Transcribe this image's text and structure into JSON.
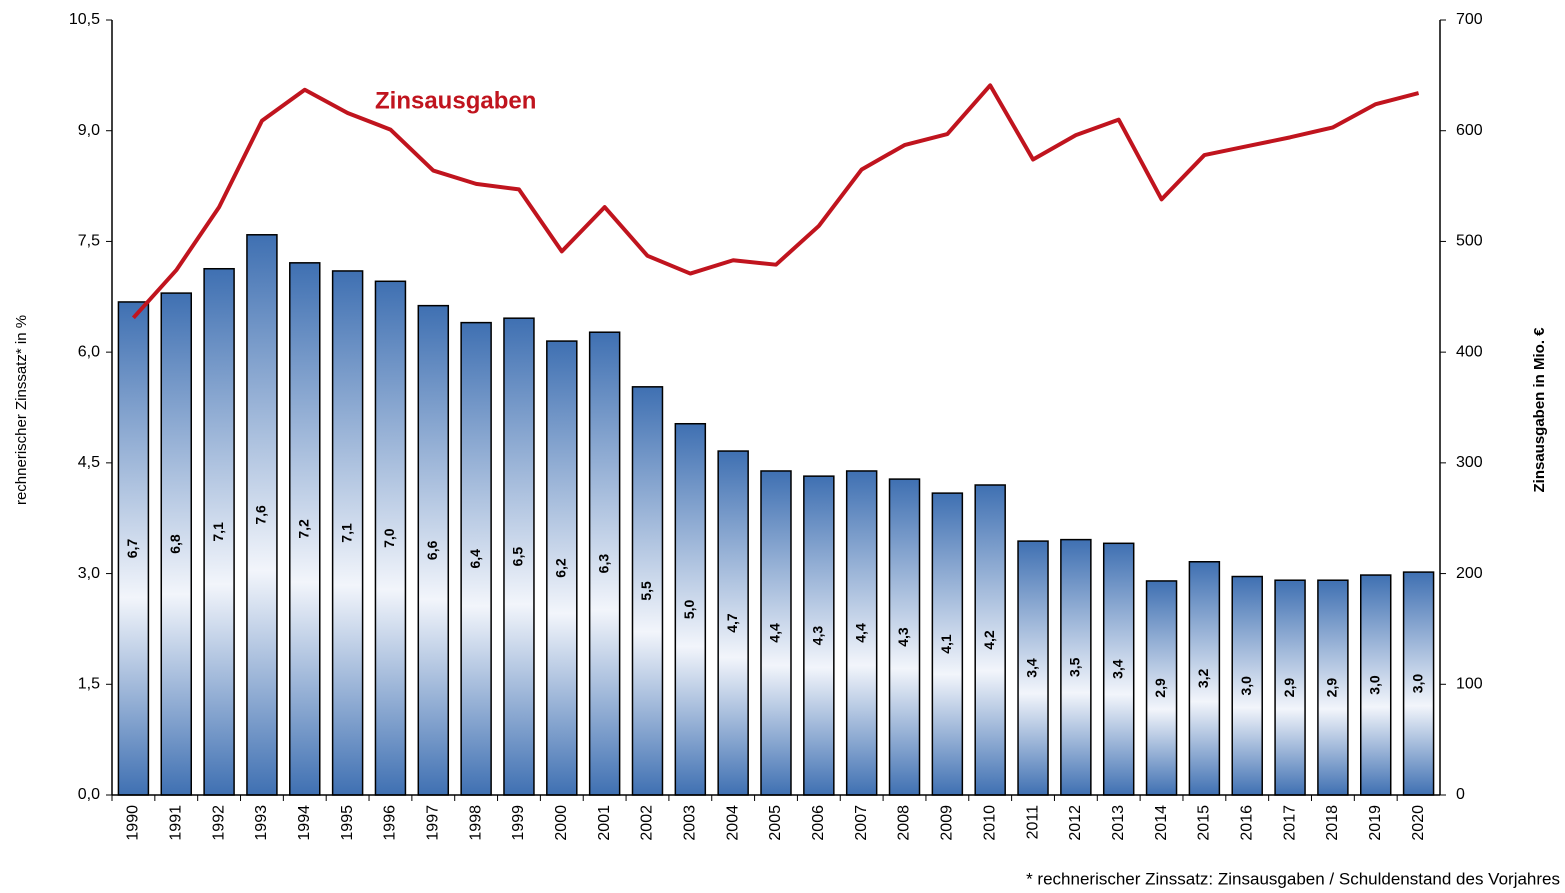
{
  "chart_data": {
    "type": "bar",
    "categories": [
      "1990",
      "1991",
      "1992",
      "1993",
      "1994",
      "1995",
      "1996",
      "1997",
      "1998",
      "1999",
      "2000",
      "2001",
      "2002",
      "2003",
      "2004",
      "2005",
      "2006",
      "2007",
      "2008",
      "2009",
      "2010",
      "2011",
      "2012",
      "2013",
      "2014",
      "2015",
      "2016",
      "2017",
      "2018",
      "2019",
      "2020"
    ],
    "series": [
      {
        "color": "#3f70b2",
        "values": [
          6.68,
          6.8,
          7.13,
          7.59,
          7.21,
          7.1,
          6.96,
          6.63,
          6.4,
          6.46,
          6.15,
          6.27,
          5.53,
          5.03,
          4.66,
          4.39,
          4.32,
          4.39,
          4.28,
          4.09,
          4.2,
          3.44,
          3.46,
          3.41,
          2.9,
          3.16,
          2.96,
          2.91,
          2.91,
          2.98,
          3.02
        ],
        "value_labels": [
          "6,7",
          "6,8",
          "7,1",
          "7,6",
          "7,2",
          "7,1",
          "7,0",
          "6,6",
          "6,4",
          "6,5",
          "6,2",
          "6,3",
          "5,5",
          "5,0",
          "4,7",
          "4,4",
          "4,3",
          "4,4",
          "4,3",
          "4,1",
          "4,2",
          "3,4",
          "3,5",
          "3,4",
          "2,9",
          "3,2",
          "3,0",
          "2,9",
          "2,9",
          "3,0",
          "3,0"
        ]
      },
      {
        "name": "Zinsausgaben",
        "type": "line",
        "axis": "y2",
        "color": "#c0141e",
        "values": [
          431,
          474,
          531,
          609,
          637,
          616,
          601,
          564,
          552,
          547,
          491,
          531,
          487,
          471,
          483,
          479,
          514,
          565,
          587,
          597,
          641,
          574,
          596,
          610,
          538,
          578,
          586,
          594,
          603,
          624,
          634
        ]
      }
    ],
    "ylabel": "rechnerischer Zinssatz* in %",
    "y2label": "Zinsausgaben in Mio. €",
    "footnote": "* rechnerischer Zinssatz: Zinsausgaben / Schuldenstand des Vorjahres",
    "ylim": [
      0,
      10.5
    ],
    "yticks": [
      {
        "value": 0,
        "label": "0,0"
      },
      {
        "value": 1.5,
        "label": "1,5"
      },
      {
        "value": 3,
        "label": "3,0"
      },
      {
        "value": 4.5,
        "label": "4,5"
      },
      {
        "value": 6,
        "label": "6,0"
      },
      {
        "value": 7.5,
        "label": "7,5"
      },
      {
        "value": 9,
        "label": "9,0"
      },
      {
        "value": 10.5,
        "label": "10,5"
      }
    ],
    "y2lim": [
      0,
      700
    ],
    "y2ticks": [
      0,
      100,
      200,
      300,
      400,
      500,
      600,
      700
    ]
  }
}
